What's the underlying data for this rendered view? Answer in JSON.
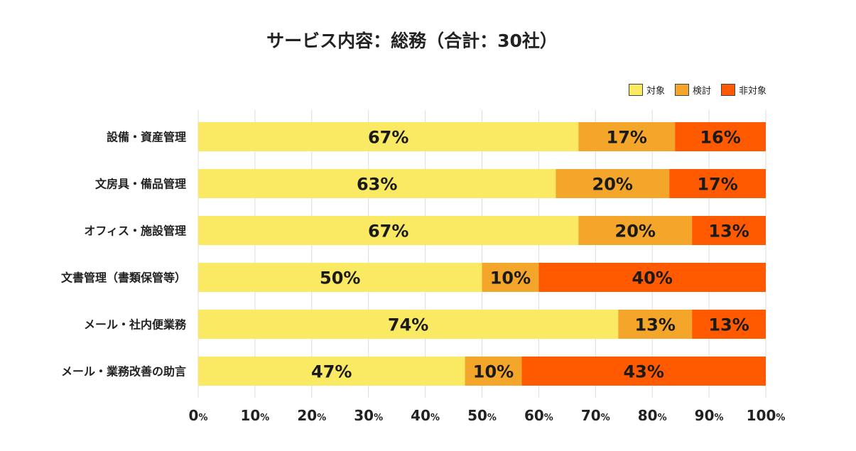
{
  "chart_data": {
    "type": "bar",
    "orientation": "horizontal",
    "stacked": true,
    "title": "サービス内容：総務（合計：30社）",
    "categories": [
      "設備・資産管理",
      "文房具・備品管理",
      "オフィス・施設管理",
      "文書管理（書類保管等）",
      "メール・社内便業務",
      "メール・業務改善の助言"
    ],
    "series": [
      {
        "name": "対象",
        "color": "#FAE963",
        "values": [
          67,
          63,
          67,
          50,
          74,
          47
        ]
      },
      {
        "name": "検討",
        "color": "#F4A62A",
        "values": [
          17,
          20,
          20,
          10,
          13,
          10
        ]
      },
      {
        "name": "非対象",
        "color": "#FF5A00",
        "values": [
          16,
          17,
          13,
          40,
          13,
          43
        ]
      }
    ],
    "xlim": [
      0,
      100
    ],
    "xticks": [
      0,
      10,
      20,
      30,
      40,
      50,
      60,
      70,
      80,
      90,
      100
    ],
    "tick_suffix": "%",
    "value_suffix": "%",
    "grid": true,
    "legend_position": "top-right"
  }
}
